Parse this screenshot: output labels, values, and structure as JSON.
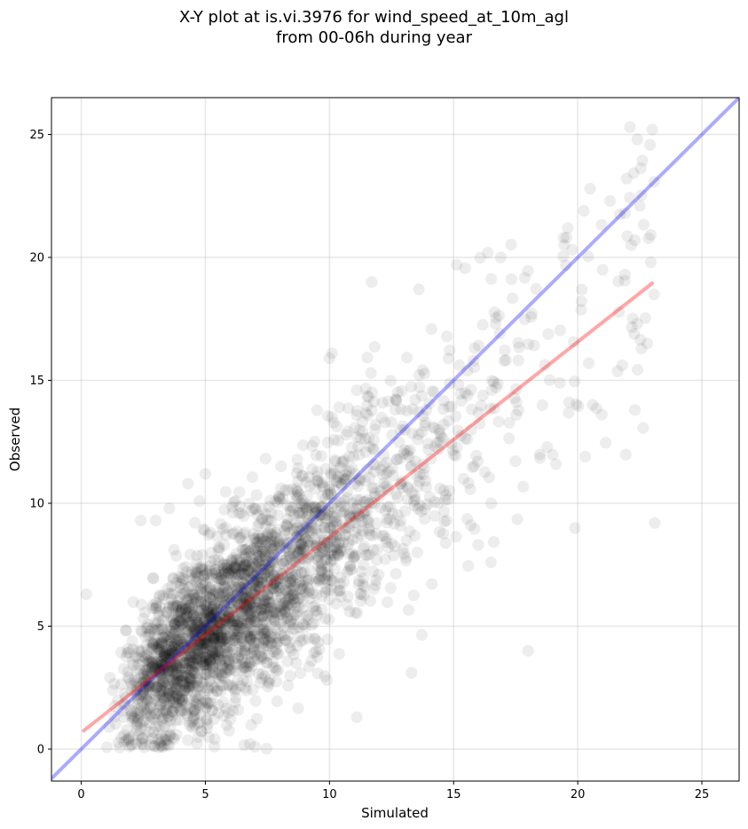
{
  "title": {
    "line1": "X-Y plot at is.vi.3976 for wind_speed_at_10m_agl",
    "line2": "from 00-06h during year"
  },
  "chart_data": {
    "type": "scatter",
    "xlabel": "Simulated",
    "ylabel": "Observed",
    "xlim": [
      -1.2,
      26.5
    ],
    "ylim": [
      -1.3,
      26.5
    ],
    "xticks": [
      0,
      5,
      10,
      15,
      20,
      25
    ],
    "yticks": [
      0,
      5,
      10,
      15,
      20,
      25
    ],
    "grid": true,
    "identity_line": {
      "color": "#0000ff",
      "points": [
        [
          -1.2,
          -1.2
        ],
        [
          26.5,
          26.5
        ]
      ]
    },
    "regression_line": {
      "color": "#ff0000",
      "points": [
        [
          0.1,
          0.75
        ],
        [
          23.0,
          18.95
        ]
      ]
    },
    "scatter_color": "#000000",
    "notable_points": [
      {
        "x": 22.1,
        "y": 25.3
      },
      {
        "x": 23.0,
        "y": 25.2
      },
      {
        "x": 22.4,
        "y": 24.8
      },
      {
        "x": 20.5,
        "y": 22.8
      },
      {
        "x": 21.3,
        "y": 22.3
      },
      {
        "x": 22.5,
        "y": 22.1
      },
      {
        "x": 19.6,
        "y": 21.2
      },
      {
        "x": 21.9,
        "y": 21.8
      },
      {
        "x": 22.3,
        "y": 20.7
      },
      {
        "x": 16.9,
        "y": 20.0
      },
      {
        "x": 21.0,
        "y": 19.5
      },
      {
        "x": 11.7,
        "y": 19.0
      },
      {
        "x": 13.6,
        "y": 18.7
      },
      {
        "x": 21.9,
        "y": 19.3
      },
      {
        "x": 22.8,
        "y": 16.5
      },
      {
        "x": 20.6,
        "y": 14.0
      },
      {
        "x": 22.3,
        "y": 13.8
      },
      {
        "x": 20.3,
        "y": 11.9
      },
      {
        "x": 23.1,
        "y": 9.2
      },
      {
        "x": 18.0,
        "y": 4.0
      },
      {
        "x": 13.3,
        "y": 3.1
      },
      {
        "x": 11.1,
        "y": 1.3
      },
      {
        "x": 0.2,
        "y": 6.3
      },
      {
        "x": 2.4,
        "y": 9.3
      },
      {
        "x": 5.0,
        "y": 11.2
      },
      {
        "x": 10.0,
        "y": 15.9
      },
      {
        "x": 7.0,
        "y": 0.1
      },
      {
        "x": 4.3,
        "y": 10.8
      },
      {
        "x": 3.0,
        "y": 9.3
      },
      {
        "x": 16.5,
        "y": 7.6
      }
    ],
    "cloud": {
      "approx_point_count": 2900,
      "x_range": [
        0.0,
        23.1
      ],
      "y_range": [
        0.0,
        25.3
      ]
    }
  }
}
